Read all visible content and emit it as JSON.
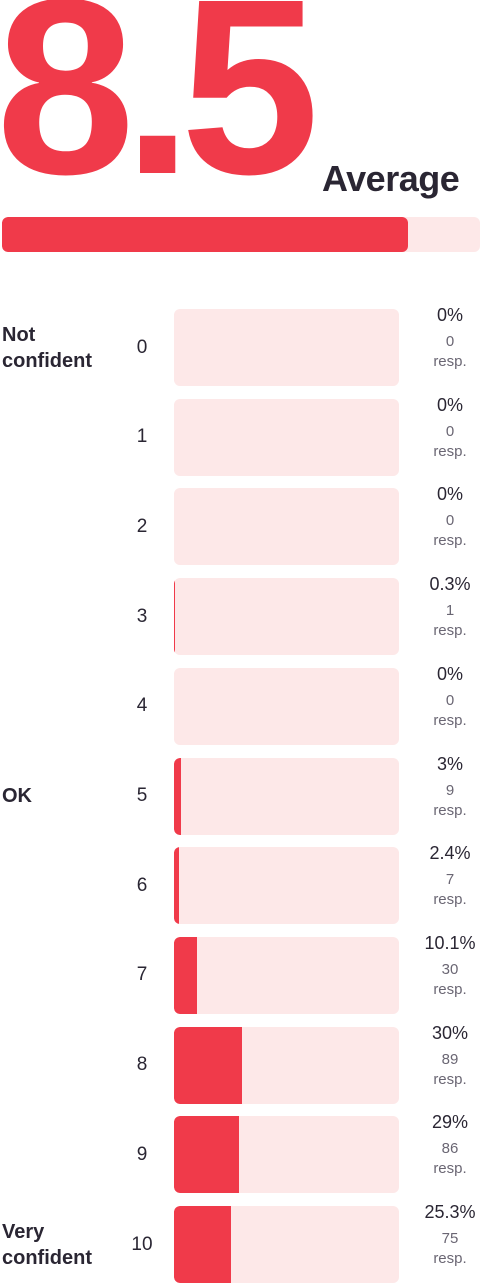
{
  "chart_data": {
    "type": "bar",
    "average": 8.5,
    "average_label": "Average",
    "color": "#f03a4a",
    "track_color": "#fde8e8",
    "categories": [
      "0",
      "1",
      "2",
      "3",
      "4",
      "5",
      "6",
      "7",
      "8",
      "9",
      "10"
    ],
    "side_labels": [
      "Not confident",
      null,
      null,
      null,
      null,
      "OK",
      null,
      null,
      null,
      null,
      "Very confident"
    ],
    "values": [
      0,
      0,
      0,
      0.3,
      0,
      3,
      2.4,
      10.1,
      30,
      29,
      25.3
    ],
    "value_labels": [
      "0%",
      "0%",
      "0%",
      "0.3%",
      "0%",
      "3%",
      "2.4%",
      "10.1%",
      "30%",
      "29%",
      "25.3%"
    ],
    "xlim": [
      0,
      100
    ],
    "responses": [
      0,
      0,
      0,
      1,
      0,
      9,
      7,
      30,
      89,
      86,
      75
    ],
    "responses_unit": "resp."
  }
}
